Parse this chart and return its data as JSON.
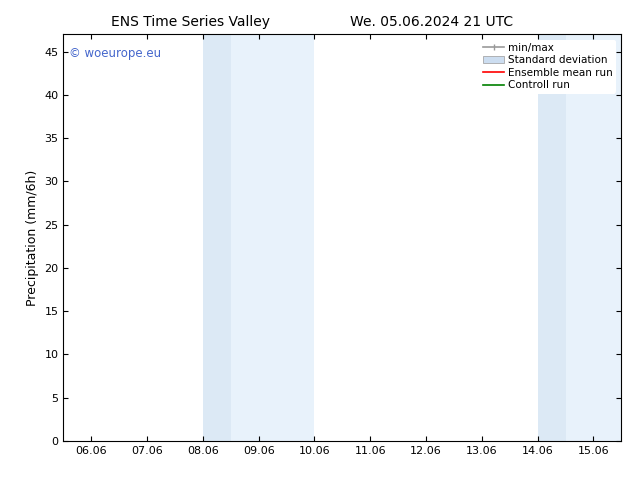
{
  "title_left": "ENS Time Series Valley",
  "title_right": "We. 05.06.2024 21 UTC",
  "ylabel": "Precipitation (mm/6h)",
  "xlabel": "",
  "ylim": [
    0,
    47
  ],
  "yticks": [
    0,
    5,
    10,
    15,
    20,
    25,
    30,
    35,
    40,
    45
  ],
  "xtick_labels": [
    "06.06",
    "07.06",
    "08.06",
    "09.06",
    "10.06",
    "11.06",
    "12.06",
    "13.06",
    "14.06",
    "15.06"
  ],
  "xtick_positions": [
    0,
    1,
    2,
    3,
    4,
    5,
    6,
    7,
    8,
    9
  ],
  "xlim": [
    -0.5,
    9.5
  ],
  "shaded_bands": [
    {
      "xmin": 2.0,
      "xmax": 2.5,
      "color": "#dce9f5"
    },
    {
      "xmin": 2.5,
      "xmax": 4.0,
      "color": "#e8f2fb"
    },
    {
      "xmin": 8.0,
      "xmax": 8.5,
      "color": "#dce9f5"
    },
    {
      "xmin": 8.5,
      "xmax": 9.5,
      "color": "#e8f2fb"
    }
  ],
  "legend_entries": [
    {
      "label": "min/max",
      "color": "#999999",
      "lw": 1.2,
      "ls": "-"
    },
    {
      "label": "Standard deviation",
      "color": "#ccddf0",
      "lw": 8,
      "ls": "-"
    },
    {
      "label": "Ensemble mean run",
      "color": "red",
      "lw": 1.2,
      "ls": "-"
    },
    {
      "label": "Controll run",
      "color": "green",
      "lw": 1.2,
      "ls": "-"
    }
  ],
  "watermark": "© woeurope.eu",
  "watermark_color": "#4466cc",
  "background_color": "#ffffff",
  "plot_bg_color": "#ffffff",
  "spine_color": "#000000",
  "tick_color": "#000000",
  "title_fontsize": 10,
  "axis_label_fontsize": 9,
  "tick_fontsize": 8,
  "legend_fontsize": 7.5
}
